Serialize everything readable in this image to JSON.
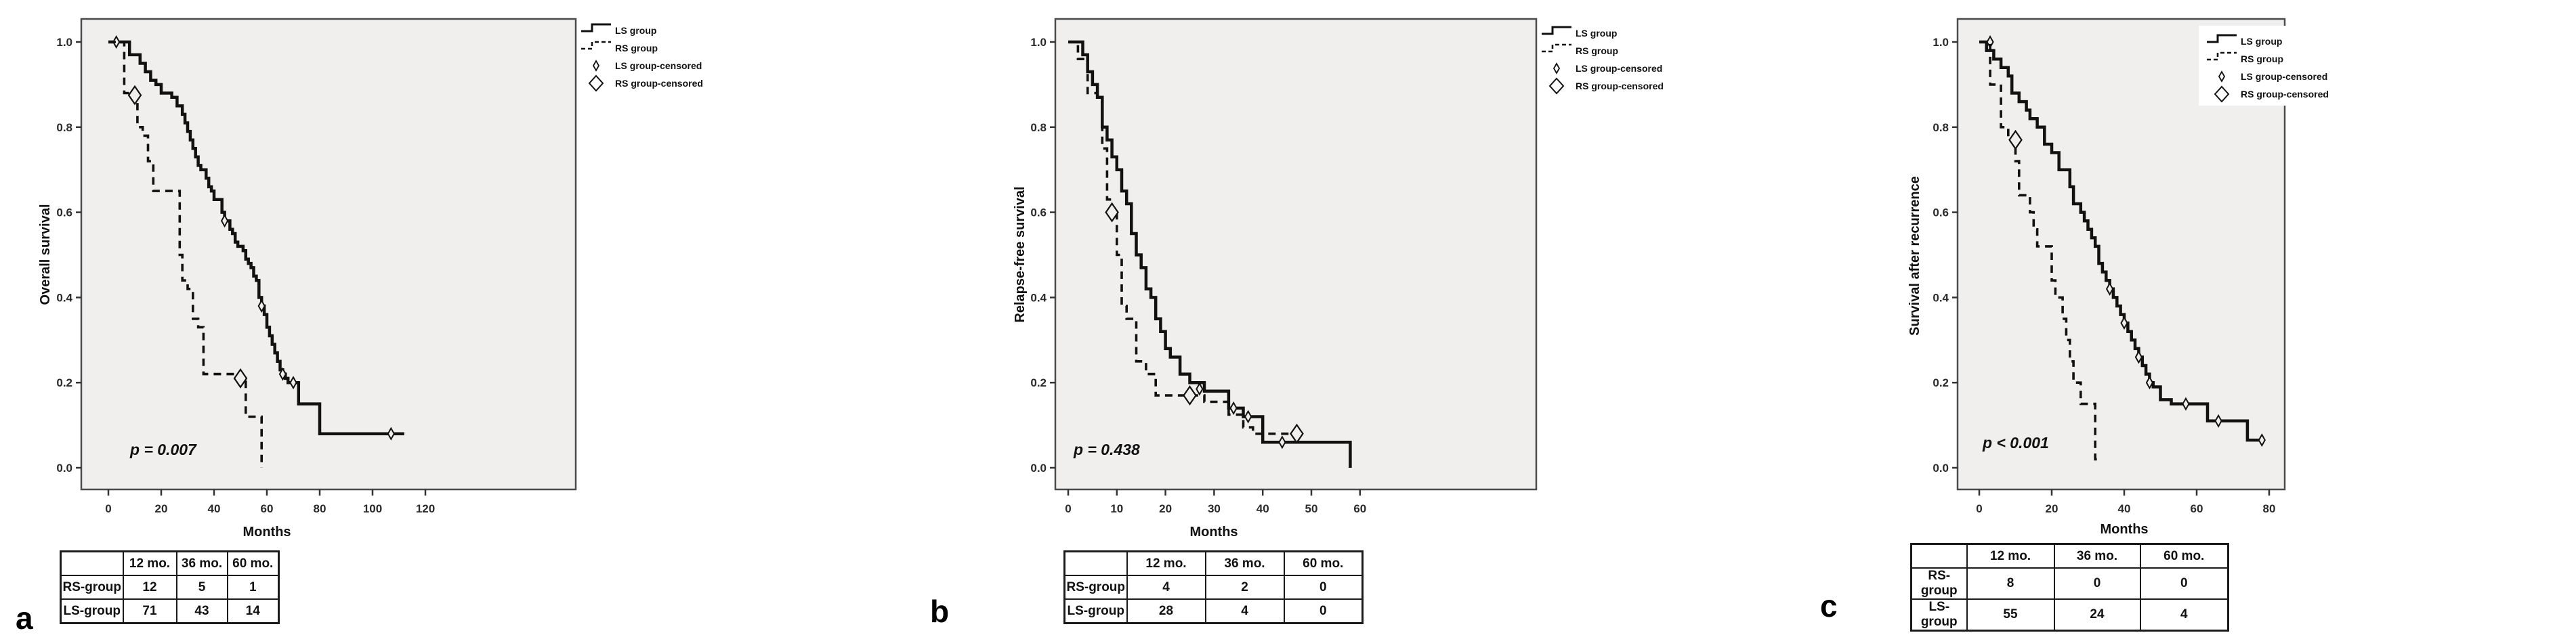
{
  "colors": {
    "curve": "#111111",
    "plot_bg": "#f0efee",
    "plot_border": "#4b4b4b",
    "tick": "#333333",
    "page_bg": "#ffffff"
  },
  "chart_data": [
    {
      "type": "line",
      "subtype": "kaplan-meier-step",
      "title": "",
      "xlabel": "Months",
      "ylabel": "Overall survival",
      "xlim": [
        0,
        130
      ],
      "ylim": [
        0.0,
        1.05
      ],
      "xticks": [
        0,
        20,
        40,
        60,
        80,
        100,
        120
      ],
      "yticks": [
        "1.0",
        "0.8",
        "0.6",
        "0.4",
        "0.2",
        "0.0"
      ],
      "grid": false,
      "legend_position": "right",
      "legend": [
        "LS group",
        "RS group",
        "LS group-censored",
        "RS group-censored"
      ],
      "annotation": "p = 0.007",
      "series": [
        {
          "name": "LS group",
          "line": "solid",
          "points": [
            [
              0,
              1
            ],
            [
              8,
              0.97
            ],
            [
              12,
              0.95
            ],
            [
              14,
              0.93
            ],
            [
              16,
              0.91
            ],
            [
              18,
              0.9
            ],
            [
              20,
              0.88
            ],
            [
              24,
              0.87
            ],
            [
              26,
              0.85
            ],
            [
              28,
              0.83
            ],
            [
              29,
              0.81
            ],
            [
              30,
              0.79
            ],
            [
              31,
              0.77
            ],
            [
              32,
              0.75
            ],
            [
              33,
              0.73
            ],
            [
              34,
              0.71
            ],
            [
              35,
              0.7
            ],
            [
              37,
              0.68
            ],
            [
              38,
              0.66
            ],
            [
              39,
              0.65
            ],
            [
              40,
              0.63
            ],
            [
              43,
              0.6
            ],
            [
              44,
              0.58
            ],
            [
              46,
              0.56
            ],
            [
              47,
              0.55
            ],
            [
              48,
              0.53
            ],
            [
              49,
              0.52
            ],
            [
              51,
              0.51
            ],
            [
              52,
              0.49
            ],
            [
              53,
              0.48
            ],
            [
              54,
              0.47
            ],
            [
              55,
              0.45
            ],
            [
              56,
              0.44
            ],
            [
              57,
              0.4
            ],
            [
              58,
              0.38
            ],
            [
              59,
              0.36
            ],
            [
              60,
              0.33
            ],
            [
              61,
              0.31
            ],
            [
              62,
              0.29
            ],
            [
              63,
              0.27
            ],
            [
              64,
              0.25
            ],
            [
              65,
              0.23
            ],
            [
              66,
              0.22
            ],
            [
              67,
              0.21
            ],
            [
              68,
              0.2
            ],
            [
              72,
              0.15
            ],
            [
              80,
              0.08
            ],
            [
              112,
              0.08
            ]
          ],
          "censored": [
            [
              3,
              1.0
            ],
            [
              44,
              0.58
            ],
            [
              58,
              0.38
            ],
            [
              66,
              0.22
            ],
            [
              70,
              0.2
            ],
            [
              107,
              0.08
            ]
          ]
        },
        {
          "name": "RS group",
          "line": "dashed",
          "points": [
            [
              0,
              1
            ],
            [
              6,
              0.88
            ],
            [
              11,
              0.8
            ],
            [
              13,
              0.78
            ],
            [
              15,
              0.72
            ],
            [
              17,
              0.65
            ],
            [
              27,
              0.5
            ],
            [
              28,
              0.44
            ],
            [
              30,
              0.42
            ],
            [
              32,
              0.35
            ],
            [
              34,
              0.33
            ],
            [
              36,
              0.22
            ],
            [
              48,
              0.21
            ],
            [
              52,
              0.12
            ],
            [
              58,
              0
            ]
          ],
          "censored": [
            [
              10,
              0.875
            ],
            [
              50,
              0.21
            ]
          ]
        }
      ]
    },
    {
      "type": "line",
      "subtype": "kaplan-meier-step",
      "title": "",
      "xlabel": "Months",
      "ylabel": "Relapse-free survival",
      "xlim": [
        0,
        65
      ],
      "ylim": [
        0.0,
        1.05
      ],
      "xticks": [
        0,
        10,
        20,
        30,
        40,
        50,
        60
      ],
      "yticks": [
        "1.0",
        "0.8",
        "0.6",
        "0.4",
        "0.2",
        "0.0"
      ],
      "grid": false,
      "legend_position": "right",
      "legend": [
        "LS group",
        "RS group",
        "LS group-censored",
        "RS group-censored"
      ],
      "annotation": "p = 0.438",
      "series": [
        {
          "name": "LS group",
          "line": "solid",
          "points": [
            [
              0,
              1
            ],
            [
              3,
              0.97
            ],
            [
              4,
              0.93
            ],
            [
              5,
              0.9
            ],
            [
              6,
              0.87
            ],
            [
              7,
              0.8
            ],
            [
              8,
              0.77
            ],
            [
              9,
              0.73
            ],
            [
              10,
              0.7
            ],
            [
              11,
              0.65
            ],
            [
              12,
              0.62
            ],
            [
              13,
              0.55
            ],
            [
              14,
              0.5
            ],
            [
              15,
              0.47
            ],
            [
              16,
              0.42
            ],
            [
              17,
              0.4
            ],
            [
              18,
              0.35
            ],
            [
              19,
              0.32
            ],
            [
              20,
              0.28
            ],
            [
              21,
              0.26
            ],
            [
              23,
              0.22
            ],
            [
              25,
              0.2
            ],
            [
              28,
              0.18
            ],
            [
              33,
              0.14
            ],
            [
              36,
              0.12
            ],
            [
              40,
              0.06
            ],
            [
              58,
              0
            ]
          ],
          "censored": [
            [
              27,
              0.185
            ],
            [
              34,
              0.14
            ],
            [
              37,
              0.12
            ],
            [
              44,
              0.06
            ]
          ]
        },
        {
          "name": "RS group",
          "line": "dashed",
          "points": [
            [
              0,
              1
            ],
            [
              2,
              0.96
            ],
            [
              4,
              0.88
            ],
            [
              6,
              0.87
            ],
            [
              7,
              0.75
            ],
            [
              8,
              0.63
            ],
            [
              9,
              0.6
            ],
            [
              10,
              0.5
            ],
            [
              11,
              0.38
            ],
            [
              12,
              0.35
            ],
            [
              14,
              0.25
            ],
            [
              16,
              0.22
            ],
            [
              18,
              0.17
            ],
            [
              28,
              0.155
            ],
            [
              33,
              0.125
            ],
            [
              36,
              0.095
            ],
            [
              38,
              0.08
            ],
            [
              47,
              0.08
            ]
          ],
          "censored": [
            [
              9,
              0.6
            ],
            [
              25,
              0.17
            ],
            [
              47,
              0.08
            ]
          ]
        }
      ]
    },
    {
      "type": "line",
      "subtype": "kaplan-meier-step",
      "title": "",
      "xlabel": "Months",
      "ylabel": "Survival after recurrence",
      "xlim": [
        0,
        85
      ],
      "ylim": [
        0.0,
        1.05
      ],
      "xticks": [
        0,
        20,
        40,
        60,
        80
      ],
      "yticks": [
        "1.0",
        "0.8",
        "0.6",
        "0.4",
        "0.2",
        "0.0"
      ],
      "grid": false,
      "legend_position": "right-overlay",
      "legend": [
        "LS group",
        "RS group",
        "LS group-censored",
        "RS group-censored"
      ],
      "annotation": "p < 0.001",
      "series": [
        {
          "name": "LS group",
          "line": "solid",
          "points": [
            [
              0,
              1
            ],
            [
              2,
              0.98
            ],
            [
              4,
              0.96
            ],
            [
              6,
              0.94
            ],
            [
              8,
              0.92
            ],
            [
              9,
              0.88
            ],
            [
              11,
              0.86
            ],
            [
              13,
              0.84
            ],
            [
              14,
              0.82
            ],
            [
              16,
              0.8
            ],
            [
              18,
              0.76
            ],
            [
              20,
              0.74
            ],
            [
              22,
              0.7
            ],
            [
              25,
              0.66
            ],
            [
              26,
              0.62
            ],
            [
              28,
              0.6
            ],
            [
              29,
              0.58
            ],
            [
              30,
              0.56
            ],
            [
              31,
              0.54
            ],
            [
              32,
              0.52
            ],
            [
              33,
              0.48
            ],
            [
              34,
              0.46
            ],
            [
              35,
              0.44
            ],
            [
              36,
              0.42
            ],
            [
              37,
              0.4
            ],
            [
              38,
              0.38
            ],
            [
              39,
              0.36
            ],
            [
              40,
              0.34
            ],
            [
              41,
              0.32
            ],
            [
              42,
              0.3
            ],
            [
              43,
              0.28
            ],
            [
              44,
              0.26
            ],
            [
              45,
              0.24
            ],
            [
              46,
              0.22
            ],
            [
              47,
              0.2
            ],
            [
              48,
              0.19
            ],
            [
              50,
              0.16
            ],
            [
              53,
              0.15
            ],
            [
              63,
              0.11
            ],
            [
              74,
              0.065
            ],
            [
              78,
              0.065
            ]
          ],
          "censored": [
            [
              3,
              1.0
            ],
            [
              36,
              0.42
            ],
            [
              40,
              0.34
            ],
            [
              44,
              0.26
            ],
            [
              47,
              0.2
            ],
            [
              57,
              0.15
            ],
            [
              66,
              0.11
            ],
            [
              78,
              0.065
            ]
          ]
        },
        {
          "name": "RS group",
          "line": "dashed",
          "points": [
            [
              0,
              1
            ],
            [
              3,
              0.9
            ],
            [
              6,
              0.8
            ],
            [
              8,
              0.77
            ],
            [
              10,
              0.72
            ],
            [
              11,
              0.64
            ],
            [
              14,
              0.6
            ],
            [
              15,
              0.56
            ],
            [
              16,
              0.52
            ],
            [
              20,
              0.44
            ],
            [
              21,
              0.4
            ],
            [
              23,
              0.35
            ],
            [
              24,
              0.3
            ],
            [
              25,
              0.25
            ],
            [
              26,
              0.2
            ],
            [
              28,
              0.15
            ],
            [
              32,
              0.02
            ],
            [
              33,
              0.02
            ]
          ],
          "censored": [
            [
              10,
              0.77
            ]
          ]
        }
      ]
    }
  ],
  "panels": [
    {
      "letter": "a",
      "risk_table": {
        "headers": [
          "",
          "12 mo.",
          "36 mo.",
          "60 mo."
        ],
        "rows": [
          {
            "label": "RS-group",
            "values": [
              "12",
              "5",
              "1"
            ]
          },
          {
            "label": "LS-group",
            "values": [
              "71",
              "43",
              "14"
            ]
          }
        ]
      }
    },
    {
      "letter": "b",
      "risk_table": {
        "headers": [
          "",
          "12 mo.",
          "36 mo.",
          "60 mo."
        ],
        "rows": [
          {
            "label": "RS-group",
            "values": [
              "4",
              "2",
              "0"
            ]
          },
          {
            "label": "LS-group",
            "values": [
              "28",
              "4",
              "0"
            ]
          }
        ]
      }
    },
    {
      "letter": "c",
      "risk_table": {
        "headers": [
          "",
          "12 mo.",
          "36 mo.",
          "60 mo."
        ],
        "rows": [
          {
            "label": "RS-group",
            "values": [
              "8",
              "0",
              "0"
            ]
          },
          {
            "label": "LS-group",
            "values": [
              "55",
              "24",
              "4"
            ]
          }
        ]
      }
    }
  ]
}
